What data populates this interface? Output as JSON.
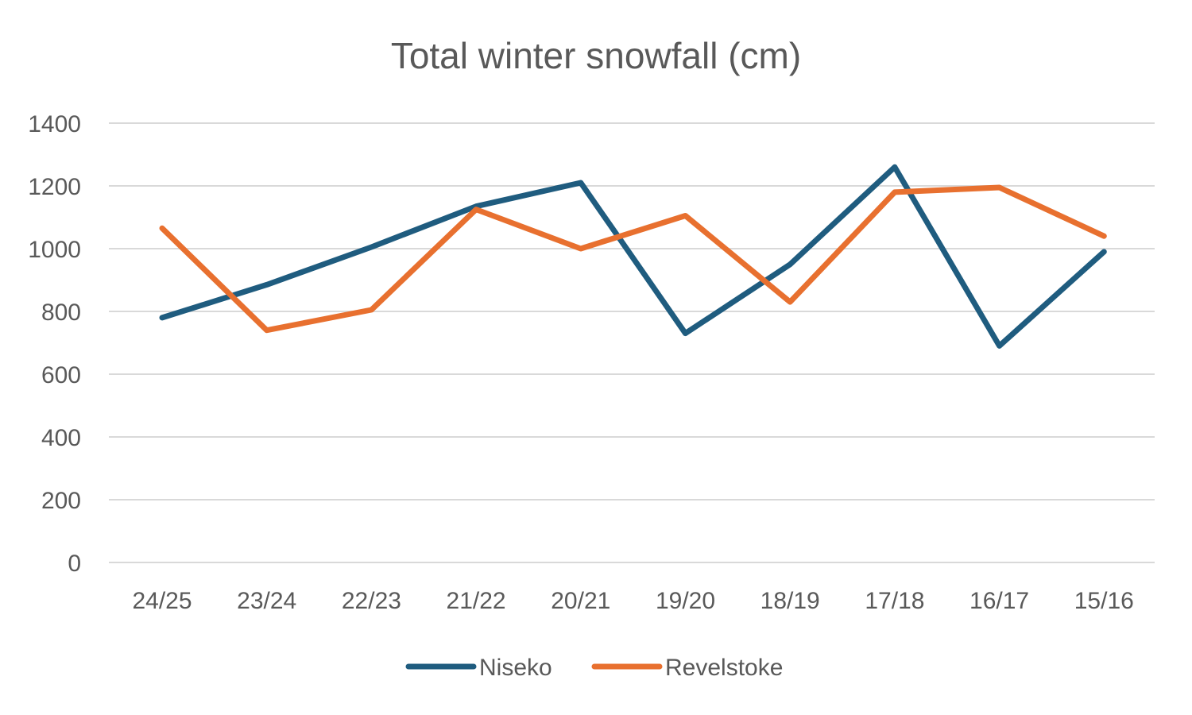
{
  "chart_data": {
    "type": "line",
    "title": "Total winter snowfall (cm)",
    "xlabel": "",
    "ylabel": "",
    "categories": [
      "24/25",
      "23/24",
      "22/23",
      "21/22",
      "20/21",
      "19/20",
      "18/19",
      "17/18",
      "16/17",
      "15/16"
    ],
    "ylim": [
      0,
      1400
    ],
    "yticks": [
      0,
      200,
      400,
      600,
      800,
      1000,
      1200,
      1400
    ],
    "grid": true,
    "legend_position": "bottom",
    "series": [
      {
        "name": "Niseko",
        "color": "#1f5c7f",
        "values": [
          780,
          885,
          1005,
          1135,
          1210,
          730,
          950,
          1260,
          690,
          990
        ]
      },
      {
        "name": "Revelstoke",
        "color": "#e8702f",
        "values": [
          1065,
          740,
          805,
          1125,
          1000,
          1105,
          830,
          1180,
          1195,
          1040
        ]
      }
    ]
  }
}
